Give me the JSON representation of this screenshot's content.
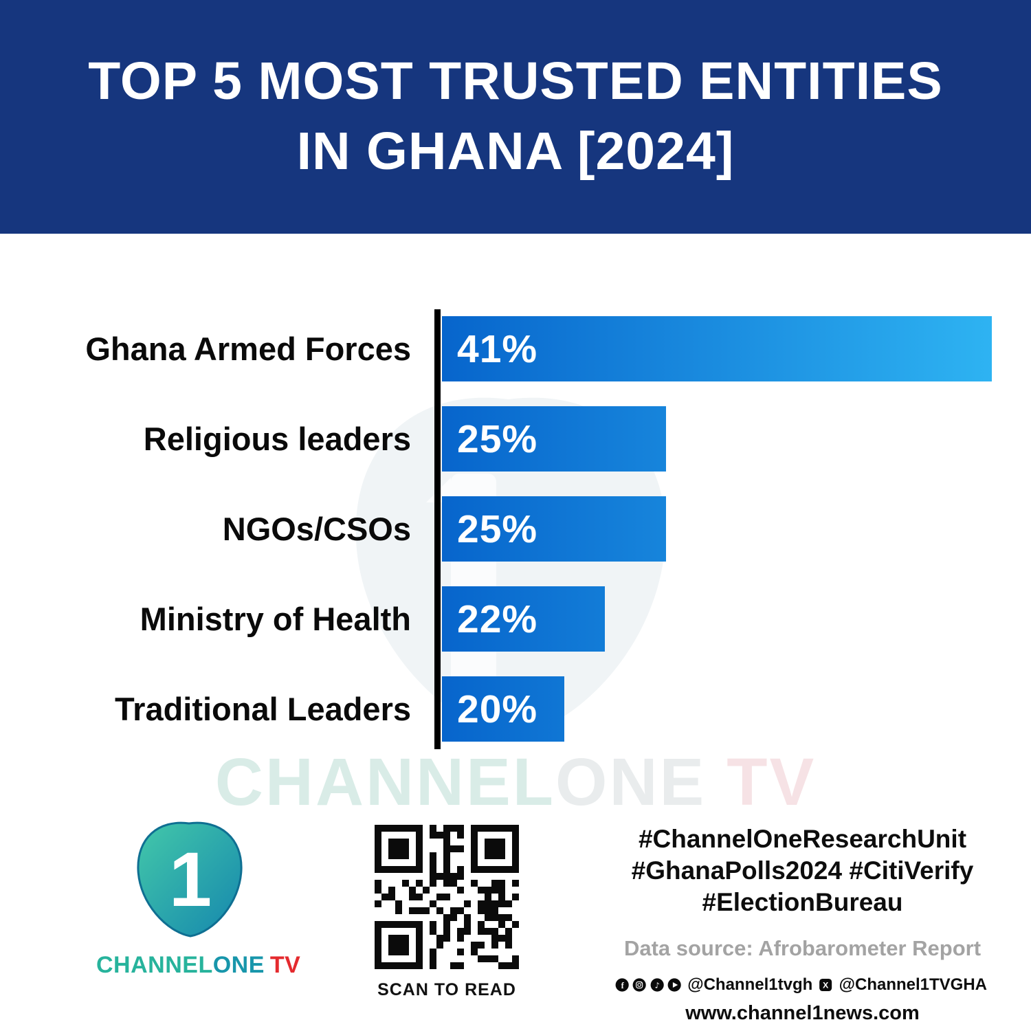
{
  "header": {
    "title_line1": "TOP 5 MOST TRUSTED ENTITIES",
    "title_line2": "IN GHANA [2024]"
  },
  "chart_data": {
    "type": "bar",
    "orientation": "horizontal",
    "title": "TOP 5 MOST TRUSTED ENTITIES IN GHANA [2024]",
    "categories": [
      "Ghana Armed Forces",
      "Religious leaders",
      "NGOs/CSOs",
      "Ministry of Health",
      "Traditional Leaders"
    ],
    "values": [
      41,
      25,
      25,
      22,
      20
    ],
    "value_labels": [
      "41%",
      "25%",
      "25%",
      "22%",
      "20%"
    ],
    "unit": "%",
    "grid": false,
    "legend": false,
    "display_scale": {
      "min": 14,
      "max": 41
    }
  },
  "watermark": {
    "part_channel": "CHANNEL",
    "part_one": "ONE",
    "part_tv": " TV"
  },
  "footer": {
    "logo_digit": "1",
    "brand_channel": "CHANNEL",
    "brand_one": "ONE",
    "brand_tv": "TV",
    "qr_caption": "SCAN TO READ",
    "hashtags_line1": "#ChannelOneResearchUnit",
    "hashtags_line2": "#GhanaPolls2024 #CitiVerify",
    "hashtags_line3": "#ElectionBureau",
    "data_source": "Data source: Afrobarometer Report",
    "handle_main": "@Channel1tvgh",
    "handle_x": "@Channel1TVGHA",
    "website": "www.channel1news.com"
  },
  "colors": {
    "header_bg": "#16367e",
    "bar_gradient_start": "#0765cc",
    "bar_gradient_end": "#2eb3f2",
    "axis": "#000000",
    "brand_teal": "#27b39c",
    "brand_red": "#e42a2e"
  }
}
